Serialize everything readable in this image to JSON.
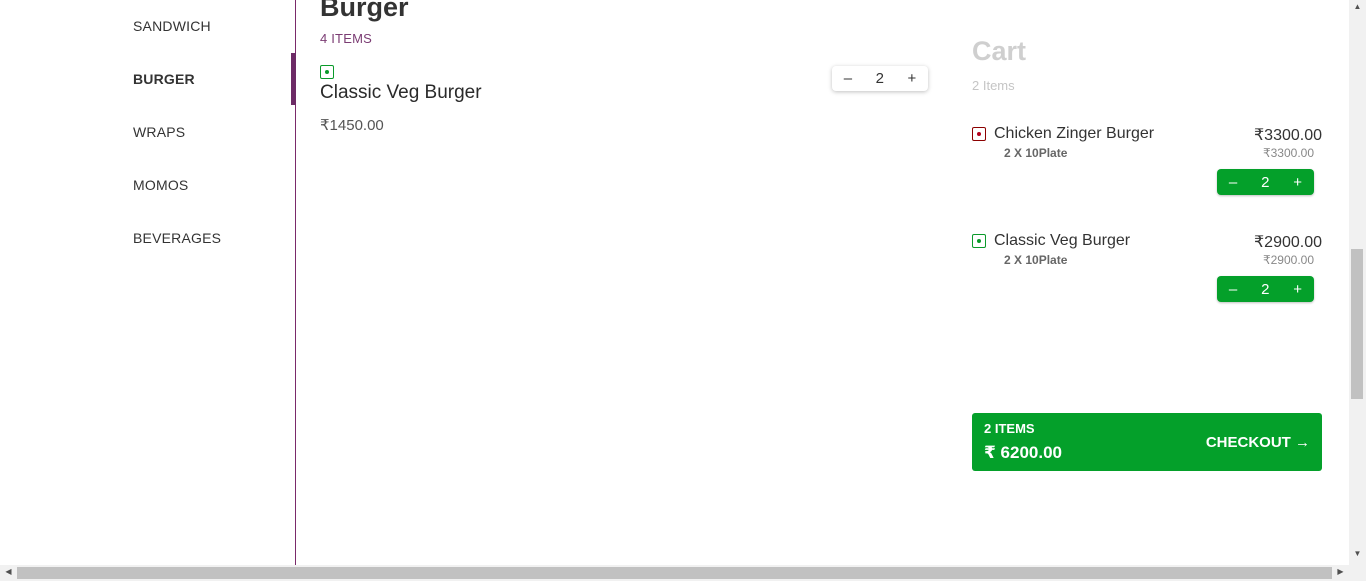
{
  "sidebar": {
    "items": [
      {
        "label": "SANDWICH"
      },
      {
        "label": "BURGER"
      },
      {
        "label": "WRAPS"
      },
      {
        "label": "MOMOS"
      },
      {
        "label": "BEVERAGES"
      }
    ]
  },
  "menu": {
    "section_title": "Burger",
    "section_count": "4 ITEMS",
    "item": {
      "name": "Classic Veg Burger",
      "price": "₹1450.00",
      "quantity": "2",
      "minus": "–",
      "plus": "+"
    }
  },
  "cart": {
    "title": "Cart",
    "count": "2 Items",
    "rows": [
      {
        "name": "Chicken Zinger Burger",
        "sub": "2 X 10Plate",
        "price": "₹3300.00",
        "subprice": "₹3300.00",
        "quantity": "2",
        "type": "non-veg"
      },
      {
        "name": "Classic Veg Burger",
        "sub": "2 X 10Plate",
        "price": "₹2900.00",
        "subprice": "₹2900.00",
        "quantity": "2",
        "type": "veg"
      }
    ],
    "minus": "–",
    "plus": "+",
    "checkout": {
      "items": "2 ITEMS",
      "total": "₹ 6200.00",
      "label": "CHECKOUT →"
    }
  },
  "colors": {
    "accent": "#6d2b66",
    "green": "#04a02a"
  }
}
